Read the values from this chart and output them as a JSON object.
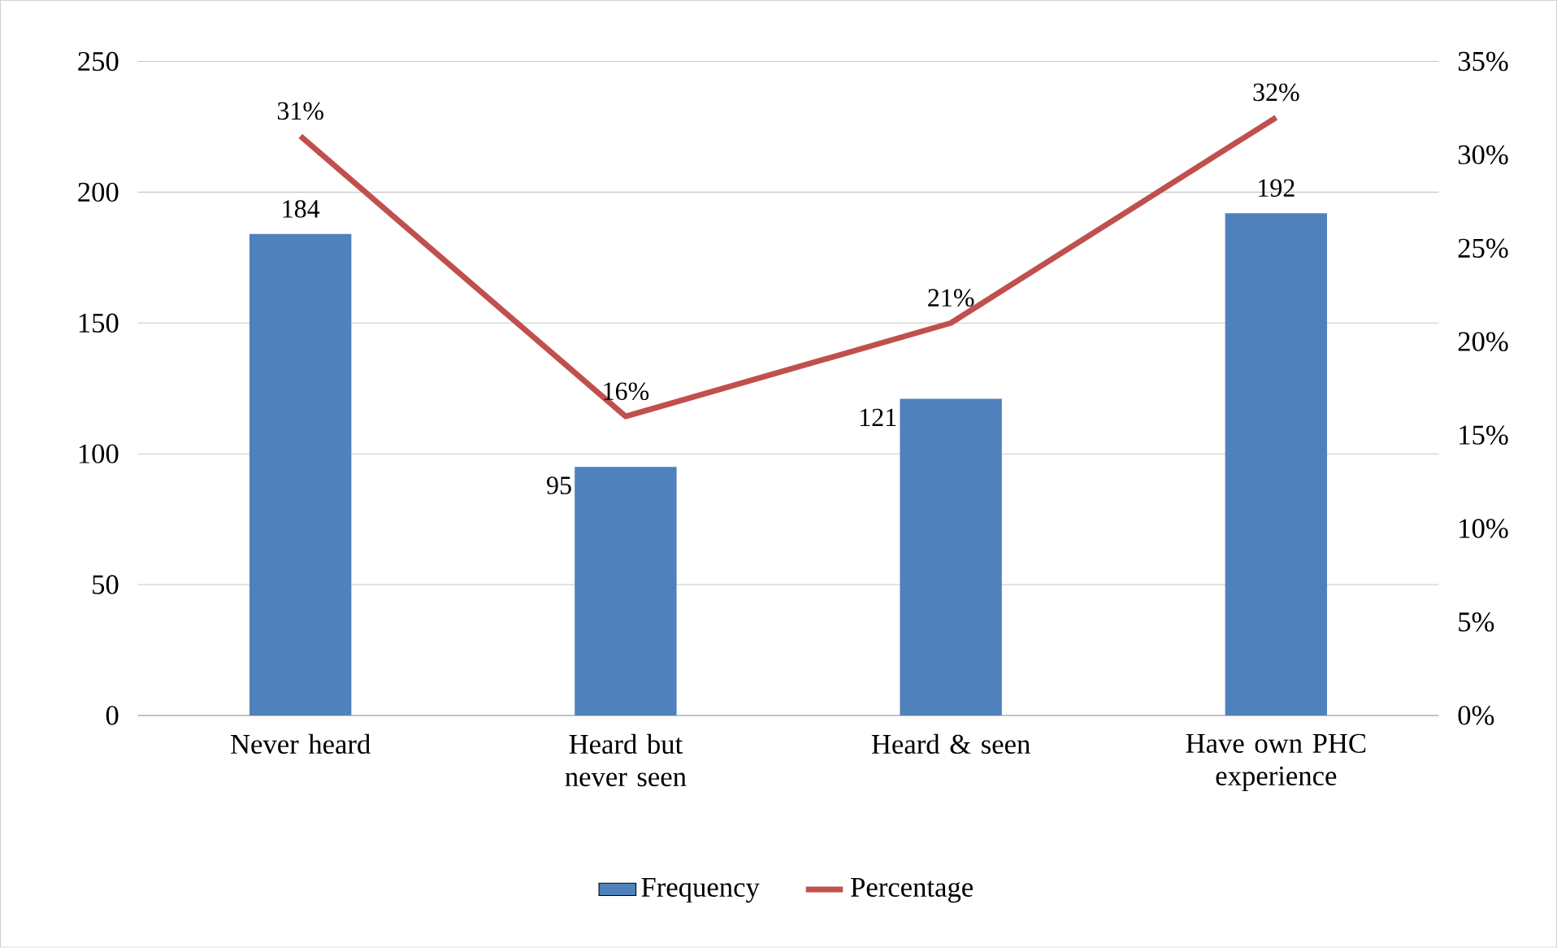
{
  "chart_data": {
    "type": "bar",
    "categories": [
      "Never heard",
      "Heard but never seen",
      "Heard & seen",
      "Have own PHC experience"
    ],
    "series": [
      {
        "name": "Frequency",
        "color": "#4f81bd",
        "values": [
          184,
          95,
          121,
          192
        ],
        "value_labels": [
          "184",
          "95",
          "121",
          "192"
        ]
      },
      {
        "name": "Percentage",
        "type": "line",
        "axis": "y2",
        "color": "#c0504d",
        "values": [
          31,
          16,
          21,
          32
        ],
        "value_labels": [
          "31%",
          "16%",
          "21%",
          "32%"
        ]
      }
    ],
    "ylim": [
      0,
      250
    ],
    "yticks": [
      0,
      50,
      100,
      150,
      200,
      250
    ],
    "y2lim": [
      0,
      35
    ],
    "y2ticks": [
      {
        "value": 0,
        "label": "0%"
      },
      {
        "value": 5,
        "label": "5%"
      },
      {
        "value": 10,
        "label": "10%"
      },
      {
        "value": 15,
        "label": "15%"
      },
      {
        "value": 20,
        "label": "20%"
      },
      {
        "value": 25,
        "label": "25%"
      },
      {
        "value": 30,
        "label": "30%"
      },
      {
        "value": 35,
        "label": "35%"
      }
    ],
    "grid": "y",
    "legend": "bottom",
    "marker": "none"
  }
}
